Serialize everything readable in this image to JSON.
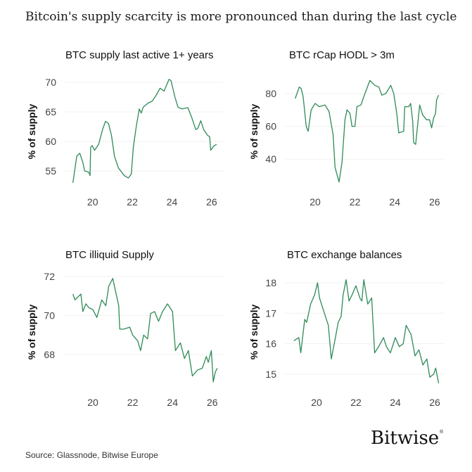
{
  "title": "Bitcoin's supply scarcity is more pronounced than during the last cycle",
  "source": "Source: Glassnode, Bitwise Europe",
  "logo": "Bitwise",
  "line_color": "#2e8b57",
  "chart_data": [
    {
      "type": "line",
      "title": "BTC supply last active 1+ years",
      "ylabel": "% of supply",
      "x_ticks": [
        20,
        22,
        24,
        26
      ],
      "x_tick_labels": [
        "20",
        "22",
        "24",
        "26"
      ],
      "y_ticks": [
        55,
        60,
        65,
        70
      ],
      "y_tick_labels": [
        "55",
        "60",
        "65",
        "70"
      ],
      "grid": true,
      "points": [
        [
          19.0,
          53
        ],
        [
          19.05,
          54
        ],
        [
          19.2,
          57.5
        ],
        [
          19.35,
          58
        ],
        [
          19.5,
          56.5
        ],
        [
          19.6,
          55
        ],
        [
          19.8,
          54.8
        ],
        [
          19.87,
          54.2
        ],
        [
          19.9,
          59
        ],
        [
          19.97,
          59.3
        ],
        [
          20.1,
          58.5
        ],
        [
          20.3,
          59.5
        ],
        [
          20.5,
          62
        ],
        [
          20.65,
          63.4
        ],
        [
          20.8,
          63
        ],
        [
          20.95,
          61
        ],
        [
          21.1,
          57.5
        ],
        [
          21.3,
          55.5
        ],
        [
          21.6,
          54.2
        ],
        [
          21.8,
          53.8
        ],
        [
          21.95,
          54.5
        ],
        [
          22.05,
          59
        ],
        [
          22.2,
          62.5
        ],
        [
          22.35,
          65.5
        ],
        [
          22.45,
          64.8
        ],
        [
          22.55,
          65.8
        ],
        [
          22.8,
          66.5
        ],
        [
          23.0,
          66.8
        ],
        [
          23.2,
          67.8
        ],
        [
          23.4,
          69
        ],
        [
          23.6,
          68.5
        ],
        [
          23.85,
          70.5
        ],
        [
          23.95,
          70.3
        ],
        [
          24.15,
          67.5
        ],
        [
          24.3,
          65.8
        ],
        [
          24.5,
          65.5
        ],
        [
          24.8,
          65.7
        ],
        [
          25.0,
          64
        ],
        [
          25.2,
          62
        ],
        [
          25.3,
          62.2
        ],
        [
          25.45,
          63.5
        ],
        [
          25.6,
          62
        ],
        [
          25.8,
          61
        ],
        [
          25.9,
          60.8
        ],
        [
          25.95,
          58.5
        ],
        [
          26.1,
          59.2
        ],
        [
          26.25,
          59.5
        ]
      ]
    },
    {
      "type": "line",
      "title": "BTC rCap HODL > 3m",
      "ylabel": "% of supply",
      "x_ticks": [
        20,
        22,
        24,
        26
      ],
      "x_tick_labels": [
        "20",
        "22",
        "24",
        "26"
      ],
      "y_ticks": [
        40,
        60,
        80
      ],
      "y_tick_labels": [
        "40",
        "60",
        "80"
      ],
      "grid": true,
      "points": [
        [
          19.0,
          77
        ],
        [
          19.2,
          84
        ],
        [
          19.3,
          83
        ],
        [
          19.4,
          78
        ],
        [
          19.55,
          60
        ],
        [
          19.65,
          57
        ],
        [
          19.8,
          70
        ],
        [
          20.0,
          74
        ],
        [
          20.2,
          72
        ],
        [
          20.5,
          73
        ],
        [
          20.7,
          69
        ],
        [
          20.9,
          55
        ],
        [
          21.0,
          35
        ],
        [
          21.2,
          26
        ],
        [
          21.35,
          38
        ],
        [
          21.5,
          64
        ],
        [
          21.6,
          70
        ],
        [
          21.75,
          68
        ],
        [
          21.85,
          60
        ],
        [
          22.0,
          60
        ],
        [
          22.1,
          72
        ],
        [
          22.3,
          73
        ],
        [
          22.5,
          80
        ],
        [
          22.75,
          88
        ],
        [
          23.0,
          85
        ],
        [
          23.2,
          84
        ],
        [
          23.35,
          79
        ],
        [
          23.55,
          80
        ],
        [
          23.8,
          85
        ],
        [
          23.95,
          80
        ],
        [
          24.1,
          68
        ],
        [
          24.2,
          56
        ],
        [
          24.45,
          57
        ],
        [
          24.5,
          72
        ],
        [
          24.7,
          72
        ],
        [
          24.8,
          74
        ],
        [
          24.9,
          63
        ],
        [
          24.95,
          50
        ],
        [
          25.05,
          49
        ],
        [
          25.25,
          73
        ],
        [
          25.4,
          67
        ],
        [
          25.6,
          64
        ],
        [
          25.75,
          64
        ],
        [
          25.85,
          59
        ],
        [
          25.95,
          65
        ],
        [
          26.05,
          68
        ],
        [
          26.1,
          76
        ],
        [
          26.2,
          79
        ]
      ]
    },
    {
      "type": "line",
      "title": "BTC illiquid Supply",
      "ylabel": "% of supply",
      "x_ticks": [
        20,
        22,
        24,
        26
      ],
      "x_tick_labels": [
        "20",
        "22",
        "24",
        "26"
      ],
      "y_ticks": [
        68,
        70,
        72
      ],
      "y_tick_labels": [
        "68",
        "70",
        "72"
      ],
      "grid": true,
      "points": [
        [
          19.0,
          71.1
        ],
        [
          19.1,
          70.8
        ],
        [
          19.4,
          71.1
        ],
        [
          19.5,
          70.2
        ],
        [
          19.65,
          70.6
        ],
        [
          19.8,
          70.4
        ],
        [
          20.0,
          70.3
        ],
        [
          20.2,
          69.9
        ],
        [
          20.45,
          70.8
        ],
        [
          20.65,
          70.5
        ],
        [
          20.8,
          71.5
        ],
        [
          21.0,
          71.9
        ],
        [
          21.15,
          71.2
        ],
        [
          21.3,
          70.5
        ],
        [
          21.35,
          69.3
        ],
        [
          21.55,
          69.3
        ],
        [
          21.85,
          69.4
        ],
        [
          22.0,
          69.0
        ],
        [
          22.25,
          68.7
        ],
        [
          22.4,
          68.2
        ],
        [
          22.55,
          69.0
        ],
        [
          22.75,
          68.8
        ],
        [
          22.9,
          70.1
        ],
        [
          23.1,
          70.2
        ],
        [
          23.3,
          69.7
        ],
        [
          23.5,
          70.2
        ],
        [
          23.75,
          70.6
        ],
        [
          24.0,
          70.2
        ],
        [
          24.15,
          68.2
        ],
        [
          24.4,
          68.6
        ],
        [
          24.6,
          67.8
        ],
        [
          24.8,
          68.2
        ],
        [
          25.0,
          66.9
        ],
        [
          25.25,
          67.2
        ],
        [
          25.5,
          67.3
        ],
        [
          25.7,
          67.9
        ],
        [
          25.8,
          67.6
        ],
        [
          25.95,
          68.2
        ],
        [
          26.05,
          66.6
        ],
        [
          26.15,
          67.1
        ],
        [
          26.25,
          67.3
        ]
      ]
    },
    {
      "type": "line",
      "title": "BTC exchange balances",
      "ylabel": "% of supply",
      "x_ticks": [
        20,
        22,
        24,
        26
      ],
      "x_tick_labels": [
        "20",
        "22",
        "24",
        "26"
      ],
      "y_ticks": [
        15,
        16,
        17,
        18
      ],
      "y_tick_labels": [
        "15",
        "16",
        "17",
        "18"
      ],
      "grid": true,
      "points": [
        [
          18.85,
          16.1
        ],
        [
          19.1,
          16.2
        ],
        [
          19.2,
          15.7
        ],
        [
          19.4,
          16.8
        ],
        [
          19.5,
          16.7
        ],
        [
          19.7,
          17.3
        ],
        [
          19.9,
          17.6
        ],
        [
          20.05,
          18.0
        ],
        [
          20.15,
          17.5
        ],
        [
          20.4,
          17.0
        ],
        [
          20.6,
          16.6
        ],
        [
          20.75,
          15.5
        ],
        [
          20.9,
          16.0
        ],
        [
          21.1,
          16.7
        ],
        [
          21.25,
          16.9
        ],
        [
          21.35,
          17.6
        ],
        [
          21.5,
          18.1
        ],
        [
          21.65,
          17.4
        ],
        [
          21.8,
          17.6
        ],
        [
          22.0,
          17.9
        ],
        [
          22.2,
          17.5
        ],
        [
          22.3,
          17.4
        ],
        [
          22.4,
          18.1
        ],
        [
          22.6,
          17.3
        ],
        [
          22.8,
          17.5
        ],
        [
          22.95,
          15.7
        ],
        [
          23.15,
          15.9
        ],
        [
          23.4,
          16.2
        ],
        [
          23.55,
          15.9
        ],
        [
          23.75,
          15.7
        ],
        [
          24.0,
          16.2
        ],
        [
          24.2,
          15.9
        ],
        [
          24.4,
          16.0
        ],
        [
          24.55,
          16.6
        ],
        [
          24.8,
          16.3
        ],
        [
          25.0,
          15.6
        ],
        [
          25.2,
          15.8
        ],
        [
          25.4,
          15.3
        ],
        [
          25.6,
          15.5
        ],
        [
          25.75,
          14.9
        ],
        [
          25.95,
          15.0
        ],
        [
          26.05,
          15.2
        ],
        [
          26.2,
          14.7
        ]
      ]
    }
  ]
}
